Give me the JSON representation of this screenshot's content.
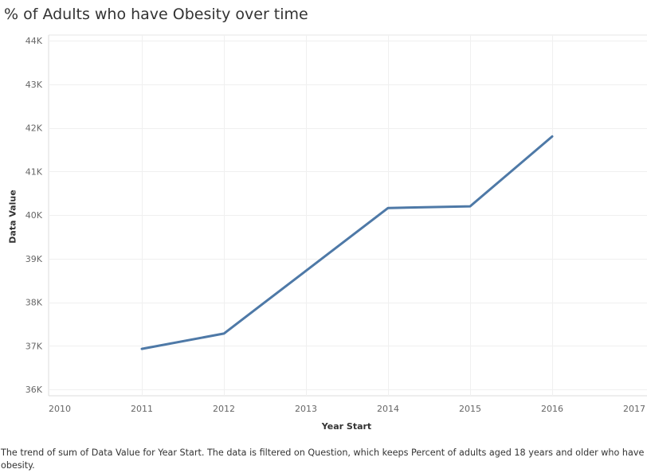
{
  "title": "% of Adults who have Obesity over time",
  "caption": "The trend of sum of Data Value for Year Start. The data is filtered on Question, which keeps Percent of adults aged 18 years and older who have obesity.",
  "chart_data": {
    "type": "line",
    "title": "% of Adults who have Obesity over time",
    "xlabel": "Year Start",
    "ylabel": "Data Value",
    "x": [
      2011,
      2012,
      2014,
      2015,
      2016
    ],
    "series": [
      {
        "values": [
          36930,
          37280,
          40160,
          40200,
          41800
        ],
        "color": "#4e79a7"
      }
    ],
    "xlim": [
      2010,
      2017
    ],
    "ylim": [
      36000,
      44000
    ],
    "x_ticks": [
      2010,
      2011,
      2012,
      2013,
      2014,
      2015,
      2016,
      2017
    ],
    "x_tick_labels": [
      "2010",
      "2011",
      "2012",
      "2013",
      "2014",
      "2015",
      "2016",
      "2017"
    ],
    "y_ticks": [
      36000,
      37000,
      38000,
      39000,
      40000,
      41000,
      42000,
      43000,
      44000
    ],
    "y_tick_labels": [
      "36K",
      "37K",
      "38K",
      "39K",
      "40K",
      "41K",
      "42K",
      "43K",
      "44K"
    ],
    "grid": true,
    "legend": "none"
  }
}
